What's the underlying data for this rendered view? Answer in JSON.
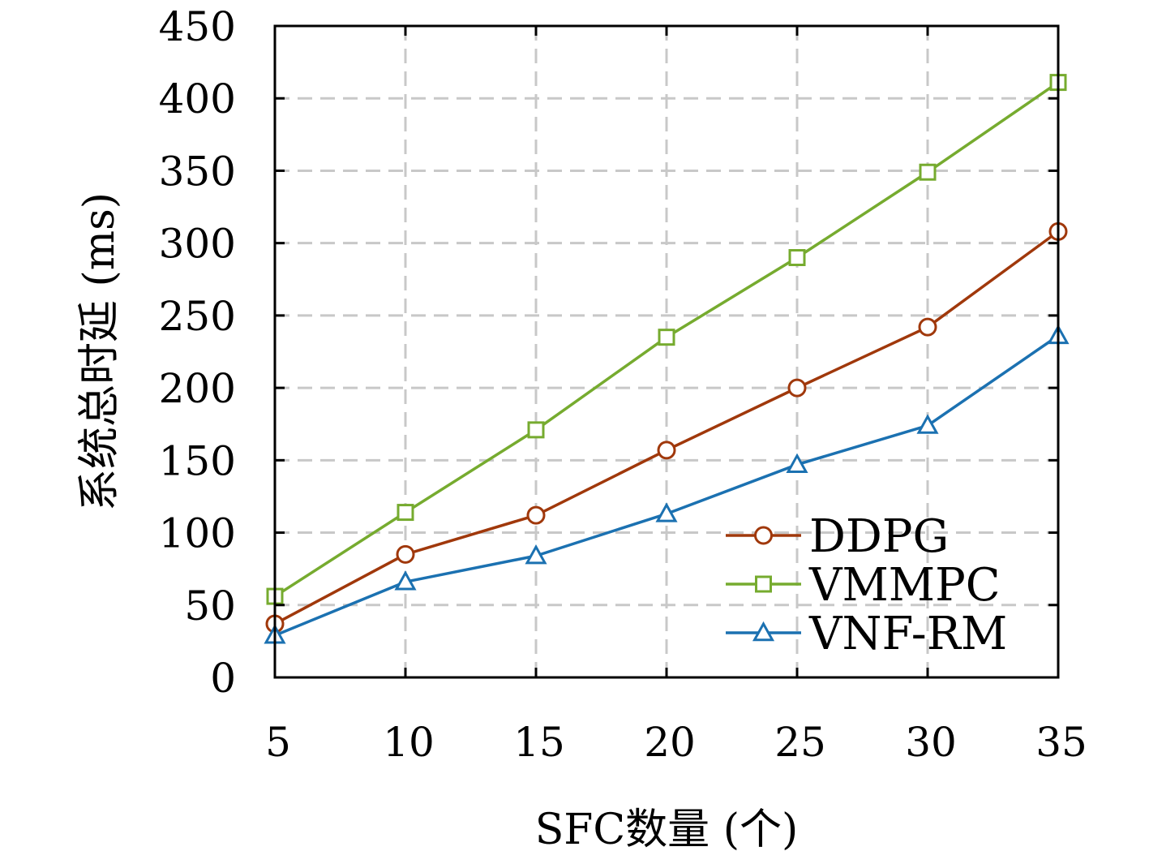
{
  "chart_data": {
    "type": "line",
    "xlabel": "SFC数量 (个)",
    "ylabel": "系统总时延 (ms)",
    "x": [
      5,
      10,
      15,
      20,
      25,
      30,
      35
    ],
    "xticks": [
      "5",
      "10",
      "15",
      "20",
      "25",
      "30",
      "35"
    ],
    "xlim": [
      5,
      35
    ],
    "ylim": [
      0,
      450
    ],
    "yticks": [
      "0",
      "50",
      "100",
      "150",
      "200",
      "250",
      "300",
      "350",
      "400",
      "450"
    ],
    "grid": true,
    "legend_position": "bottom-right",
    "series": [
      {
        "name": "DDPG",
        "color": "#a0380b",
        "marker": "circle",
        "values": [
          37,
          85,
          112,
          157,
          200,
          242,
          308
        ]
      },
      {
        "name": "VMMPC",
        "color": "#76ab2f",
        "marker": "square",
        "values": [
          56,
          114,
          171,
          235,
          290,
          349,
          411
        ]
      },
      {
        "name": "VNF-RM",
        "color": "#1b71b1",
        "marker": "triangle",
        "values": [
          29,
          66,
          84,
          113,
          147,
          174,
          236
        ]
      }
    ]
  }
}
